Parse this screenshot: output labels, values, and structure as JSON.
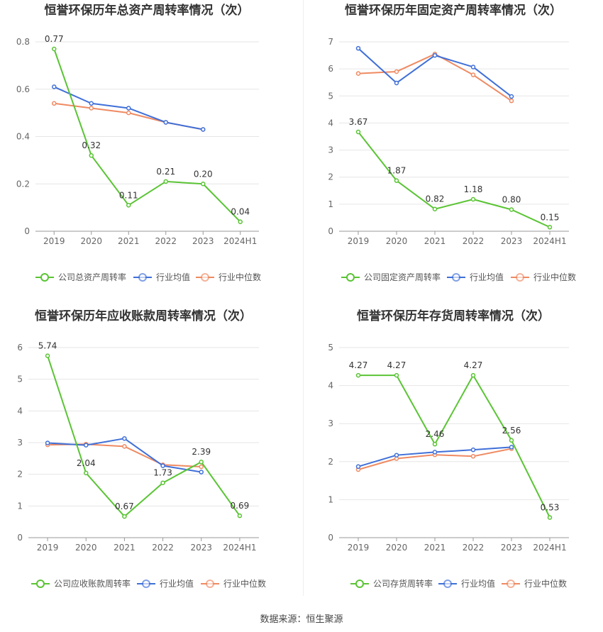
{
  "source": "数据来源：恒生聚源",
  "colors": {
    "company": "#5ac434",
    "avg": "#3f6fd8",
    "median": "#ef8a62"
  },
  "chart_data": [
    {
      "type": "line",
      "title": "恒誉环保历年总资产周转率情况（次）",
      "categories": [
        "2019",
        "2020",
        "2021",
        "2022",
        "2023",
        "2024H1"
      ],
      "ylim": [
        0,
        0.8
      ],
      "yticks": [
        "0",
        "0.2",
        "0.4",
        "0.6",
        "0.8"
      ],
      "series": [
        {
          "name": "公司总资产周转率",
          "values": [
            0.77,
            0.32,
            0.11,
            0.21,
            0.2,
            0.04
          ],
          "labels": [
            "0.77",
            "0.32",
            "0.11",
            "0.21",
            "0.20",
            "0.04"
          ]
        },
        {
          "name": "行业均值",
          "values": [
            0.61,
            0.54,
            0.52,
            0.46,
            0.43,
            null
          ]
        },
        {
          "name": "行业中位数",
          "values": [
            0.54,
            0.52,
            0.5,
            0.46,
            0.43,
            null
          ]
        }
      ]
    },
    {
      "type": "line",
      "title": "恒誉环保历年固定资产周转率情况（次）",
      "categories": [
        "2019",
        "2020",
        "2021",
        "2022",
        "2023",
        "2024H1"
      ],
      "ylim": [
        0,
        7
      ],
      "yticks": [
        "0",
        "1",
        "2",
        "3",
        "4",
        "5",
        "6",
        "7"
      ],
      "series": [
        {
          "name": "公司固定资产周转率",
          "values": [
            3.67,
            1.87,
            0.82,
            1.18,
            0.8,
            0.15
          ],
          "labels": [
            "3.67",
            "1.87",
            "0.82",
            "1.18",
            "0.80",
            "0.15"
          ]
        },
        {
          "name": "行业均值",
          "values": [
            6.76,
            5.48,
            6.5,
            6.07,
            4.98,
            null
          ]
        },
        {
          "name": "行业中位数",
          "values": [
            5.83,
            5.9,
            6.55,
            5.78,
            4.82,
            null
          ]
        }
      ]
    },
    {
      "type": "line",
      "title": "恒誉环保历年应收账款周转率情况（次）",
      "categories": [
        "2019",
        "2020",
        "2021",
        "2022",
        "2023",
        "2024H1"
      ],
      "ylim": [
        0,
        6
      ],
      "yticks": [
        "0",
        "1",
        "2",
        "3",
        "4",
        "5",
        "6"
      ],
      "series": [
        {
          "name": "公司应收账款周转率",
          "values": [
            5.74,
            2.04,
            0.67,
            1.73,
            2.39,
            0.69
          ],
          "labels": [
            "5.74",
            "2.04",
            "0.67",
            "1.73",
            "2.39",
            "0.69"
          ]
        },
        {
          "name": "行业均值",
          "values": [
            2.99,
            2.92,
            3.13,
            2.27,
            2.07,
            null
          ]
        },
        {
          "name": "行业中位数",
          "values": [
            2.93,
            2.95,
            2.88,
            2.3,
            2.24,
            null
          ]
        }
      ]
    },
    {
      "type": "line",
      "title": "恒誉环保历年存货周转率情况（次）",
      "categories": [
        "2019",
        "2020",
        "2021",
        "2022",
        "2023",
        "2024H1"
      ],
      "ylim": [
        0,
        5
      ],
      "yticks": [
        "0",
        "1",
        "2",
        "3",
        "4",
        "5"
      ],
      "series": [
        {
          "name": "公司存货周转率",
          "values": [
            4.27,
            4.27,
            2.46,
            4.27,
            2.56,
            0.53
          ],
          "labels": [
            "4.27",
            "4.27",
            "2.46",
            "4.27",
            "2.56",
            "0.53"
          ]
        },
        {
          "name": "行业均值",
          "values": [
            1.87,
            2.17,
            2.25,
            2.31,
            2.38,
            null
          ]
        },
        {
          "name": "行业中位数",
          "values": [
            1.79,
            2.08,
            2.18,
            2.14,
            2.34,
            null
          ]
        }
      ]
    }
  ]
}
